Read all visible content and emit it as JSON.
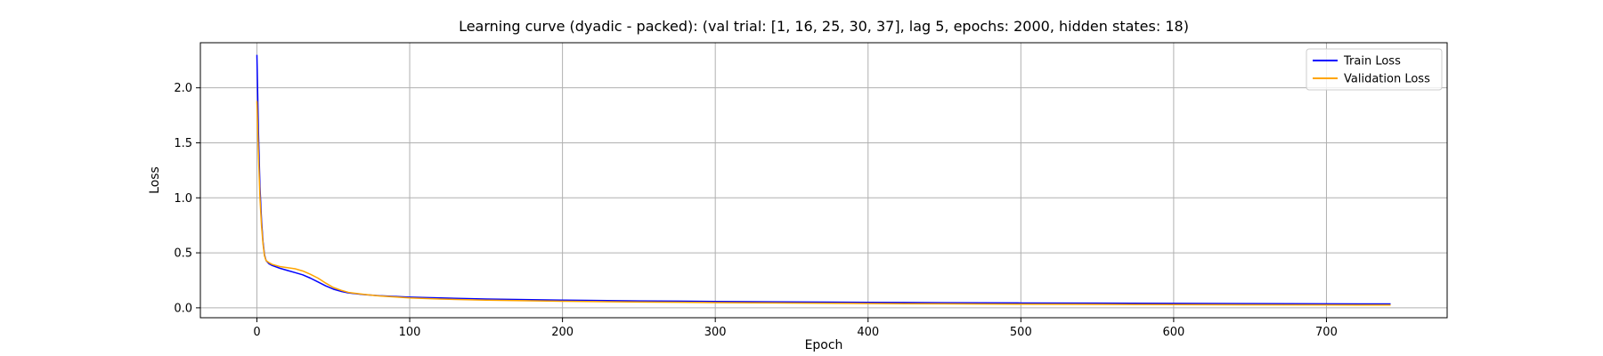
{
  "chart_data": {
    "type": "line",
    "title": "Learning curve (dyadic - packed): (val trial: [1, 16, 25, 30, 37], lag 5, epochs: 2000, hidden states: 18)",
    "xlabel": "Epoch",
    "ylabel": "Loss",
    "xlim": [
      -37,
      779
    ],
    "ylim": [
      -0.09,
      2.41
    ],
    "x_ticks": [
      0,
      100,
      200,
      300,
      400,
      500,
      600,
      700
    ],
    "y_ticks": [
      0.0,
      0.5,
      1.0,
      1.5,
      2.0
    ],
    "x_tick_labels": [
      "0",
      "100",
      "200",
      "300",
      "400",
      "500",
      "600",
      "700"
    ],
    "y_tick_labels": [
      "0.0",
      "0.5",
      "1.0",
      "1.5",
      "2.0"
    ],
    "grid": true,
    "legend_position": "top-right",
    "series": [
      {
        "name": "Train Loss",
        "color": "#0000ff",
        "points": [
          [
            0,
            2.3
          ],
          [
            1,
            1.6
          ],
          [
            2,
            1.1
          ],
          [
            3,
            0.8
          ],
          [
            4,
            0.6
          ],
          [
            5,
            0.48
          ],
          [
            6,
            0.43
          ],
          [
            8,
            0.4
          ],
          [
            10,
            0.385
          ],
          [
            15,
            0.36
          ],
          [
            20,
            0.34
          ],
          [
            25,
            0.32
          ],
          [
            30,
            0.3
          ],
          [
            35,
            0.27
          ],
          [
            40,
            0.235
          ],
          [
            45,
            0.2
          ],
          [
            50,
            0.17
          ],
          [
            55,
            0.15
          ],
          [
            60,
            0.135
          ],
          [
            70,
            0.12
          ],
          [
            80,
            0.11
          ],
          [
            100,
            0.097
          ],
          [
            120,
            0.09
          ],
          [
            150,
            0.08
          ],
          [
            200,
            0.07
          ],
          [
            250,
            0.063
          ],
          [
            300,
            0.058
          ],
          [
            350,
            0.054
          ],
          [
            400,
            0.05
          ],
          [
            450,
            0.047
          ],
          [
            500,
            0.044
          ],
          [
            550,
            0.042
          ],
          [
            600,
            0.04
          ],
          [
            650,
            0.038
          ],
          [
            700,
            0.036
          ],
          [
            742,
            0.035
          ]
        ]
      },
      {
        "name": "Validation Loss",
        "color": "#ffa500",
        "points": [
          [
            0,
            1.88
          ],
          [
            1,
            1.4
          ],
          [
            2,
            1.0
          ],
          [
            3,
            0.75
          ],
          [
            4,
            0.58
          ],
          [
            5,
            0.47
          ],
          [
            6,
            0.43
          ],
          [
            8,
            0.41
          ],
          [
            10,
            0.395
          ],
          [
            15,
            0.375
          ],
          [
            20,
            0.365
          ],
          [
            25,
            0.355
          ],
          [
            30,
            0.335
          ],
          [
            35,
            0.305
          ],
          [
            40,
            0.27
          ],
          [
            45,
            0.225
          ],
          [
            50,
            0.185
          ],
          [
            55,
            0.16
          ],
          [
            60,
            0.14
          ],
          [
            70,
            0.122
          ],
          [
            80,
            0.108
          ],
          [
            100,
            0.09
          ],
          [
            120,
            0.08
          ],
          [
            150,
            0.07
          ],
          [
            200,
            0.06
          ],
          [
            250,
            0.053
          ],
          [
            300,
            0.048
          ],
          [
            350,
            0.043
          ],
          [
            400,
            0.039
          ],
          [
            450,
            0.036
          ],
          [
            500,
            0.033
          ],
          [
            550,
            0.031
          ],
          [
            600,
            0.029
          ],
          [
            650,
            0.027
          ],
          [
            700,
            0.026
          ],
          [
            742,
            0.025
          ]
        ]
      }
    ]
  }
}
